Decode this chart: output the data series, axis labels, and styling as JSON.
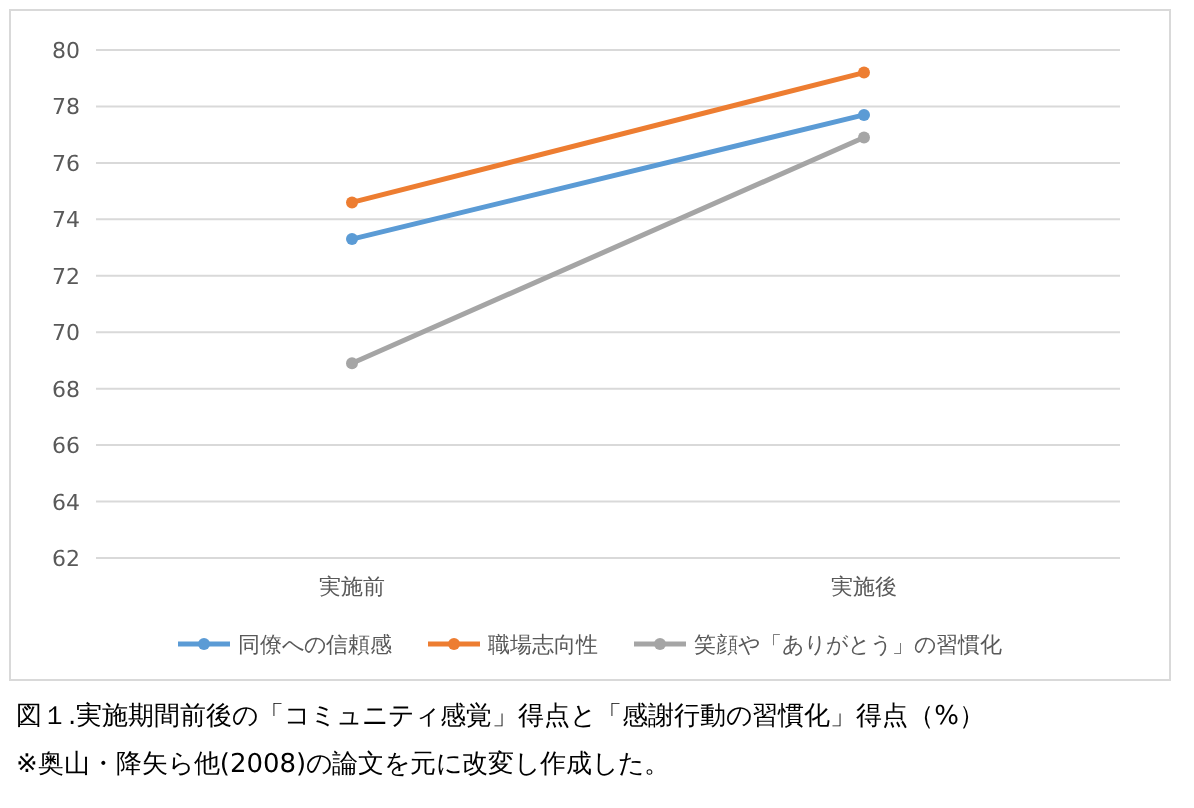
{
  "chart_data": {
    "type": "line",
    "categories": [
      "実施前",
      "実施後"
    ],
    "series": [
      {
        "name": "同僚への信頼感",
        "color": "#5b9bd5",
        "values": [
          73.3,
          77.7
        ]
      },
      {
        "name": "職場志向性",
        "color": "#ed7d31",
        "values": [
          74.6,
          79.2
        ]
      },
      {
        "name": "笑顔や「ありがとう」の習慣化",
        "color": "#a5a5a5",
        "values": [
          68.9,
          76.9
        ]
      }
    ],
    "ylim": [
      62,
      80
    ],
    "yticks": [
      62,
      64,
      66,
      68,
      70,
      72,
      74,
      76,
      78,
      80
    ],
    "grid": "y",
    "legend": "bottom",
    "marker": "circle",
    "line_style": "solid",
    "annotations": [
      "図１.実施期間前後の「コミュニティ感覚」得点と「感謝行動の習慣化」得点（%）",
      "※奥山・降矢ら他(2008)の論文を元に改変し作成した。"
    ]
  }
}
